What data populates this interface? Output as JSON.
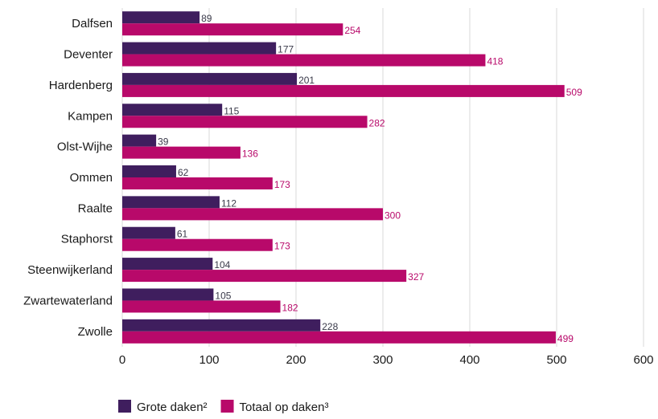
{
  "chart_data": {
    "type": "bar",
    "orientation": "horizontal",
    "categories": [
      "Dalfsen",
      "Deventer",
      "Hardenberg",
      "Kampen",
      "Olst-Wijhe",
      "Ommen",
      "Raalte",
      "Staphorst",
      "Steenwijkerland",
      "Zwartewaterland",
      "Zwolle"
    ],
    "series": [
      {
        "name": "Grote daken²",
        "color": "#3f1e5e",
        "values": [
          89,
          177,
          201,
          115,
          39,
          62,
          112,
          61,
          104,
          105,
          228
        ]
      },
      {
        "name": "Totaal op daken³",
        "color": "#b8096a",
        "values": [
          254,
          418,
          509,
          282,
          136,
          173,
          300,
          173,
          327,
          182,
          499
        ]
      }
    ],
    "xlim": [
      0,
      600
    ],
    "xticks": [
      "0",
      "100",
      "200",
      "300",
      "400",
      "500",
      "600"
    ],
    "grid": true,
    "legend_position": "bottom-left",
    "title": "",
    "xlabel": "",
    "ylabel": ""
  }
}
